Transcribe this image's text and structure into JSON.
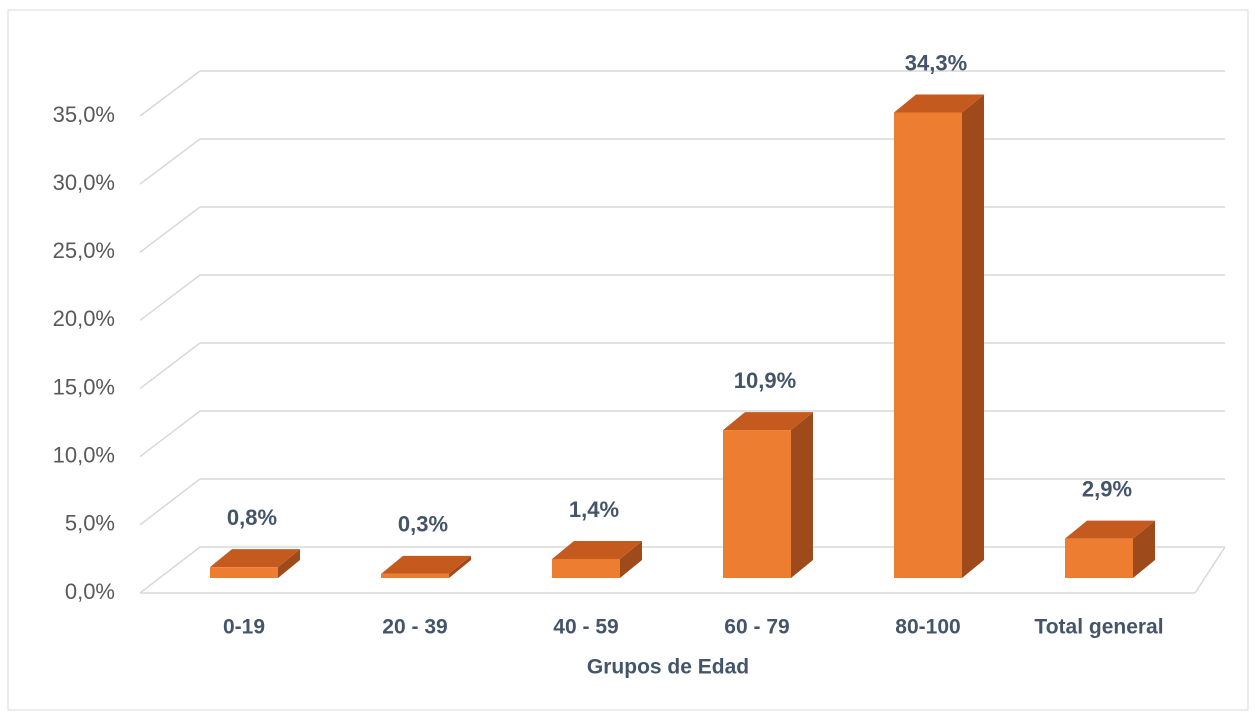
{
  "chart_data": {
    "type": "bar3d",
    "x_label": "Grupos de Edad",
    "categories": [
      "0-19",
      "20 - 39",
      "40 - 59",
      "60 - 79",
      "80-100",
      "Total general"
    ],
    "values": [
      0.8,
      0.3,
      1.4,
      10.9,
      34.3,
      2.9
    ],
    "value_labels": [
      "0,8%",
      "0,3%",
      "1,4%",
      "10,9%",
      "34,3%",
      "2,9%"
    ],
    "color": "#ed7d31",
    "ylim": [
      0,
      35
    ],
    "yticks": [
      {
        "value": 0,
        "label": "0,0%"
      },
      {
        "value": 5,
        "label": "5,0%"
      },
      {
        "value": 10,
        "label": "10,0%"
      },
      {
        "value": 15,
        "label": "15,0%"
      },
      {
        "value": 20,
        "label": "20,0%"
      },
      {
        "value": 25,
        "label": "25,0%"
      },
      {
        "value": 30,
        "label": "30,0%"
      },
      {
        "value": 35,
        "label": "35,0%"
      }
    ],
    "grid": true
  }
}
